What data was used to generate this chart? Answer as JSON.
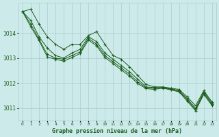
{
  "title": "Graphe pression niveau de la mer (hPa)",
  "background_color": "#cceaea",
  "grid_color": "#aacccc",
  "line_color": "#1a5c1a",
  "xlim": [
    -0.5,
    23.5
  ],
  "ylim": [
    1010.5,
    1015.2
  ],
  "yticks": [
    1011,
    1012,
    1013,
    1014
  ],
  "xticks": [
    0,
    1,
    2,
    3,
    4,
    5,
    6,
    7,
    8,
    9,
    10,
    11,
    12,
    13,
    14,
    15,
    16,
    17,
    18,
    19,
    20,
    21,
    22,
    23
  ],
  "series": [
    [
      1014.85,
      1014.95,
      1014.35,
      1013.85,
      1013.55,
      1013.35,
      1013.55,
      1013.55,
      1013.9,
      1014.05,
      1013.55,
      1013.1,
      1012.95,
      1012.65,
      1012.3,
      1011.95,
      1011.85,
      1011.85,
      1011.8,
      1011.75,
      1011.45,
      1011.1,
      1011.7,
      1011.25
    ],
    [
      1014.85,
      1014.5,
      1013.85,
      1013.4,
      1013.1,
      1013.0,
      1013.2,
      1013.35,
      1013.85,
      1013.65,
      1013.2,
      1012.95,
      1012.7,
      1012.45,
      1012.15,
      1011.85,
      1011.82,
      1011.82,
      1011.78,
      1011.7,
      1011.38,
      1011.0,
      1011.65,
      1011.2
    ],
    [
      1014.85,
      1014.35,
      1013.75,
      1013.15,
      1013.0,
      1012.95,
      1013.1,
      1013.25,
      1013.78,
      1013.55,
      1013.1,
      1012.85,
      1012.6,
      1012.35,
      1012.05,
      1011.82,
      1011.8,
      1011.82,
      1011.76,
      1011.68,
      1011.32,
      1010.95,
      1011.6,
      1011.15
    ],
    [
      1014.85,
      1014.25,
      1013.7,
      1013.05,
      1012.95,
      1012.88,
      1013.02,
      1013.18,
      1013.72,
      1013.48,
      1013.02,
      1012.78,
      1012.52,
      1012.28,
      1011.98,
      1011.78,
      1011.75,
      1011.8,
      1011.73,
      1011.65,
      1011.28,
      1010.9,
      1011.55,
      1011.1
    ]
  ]
}
